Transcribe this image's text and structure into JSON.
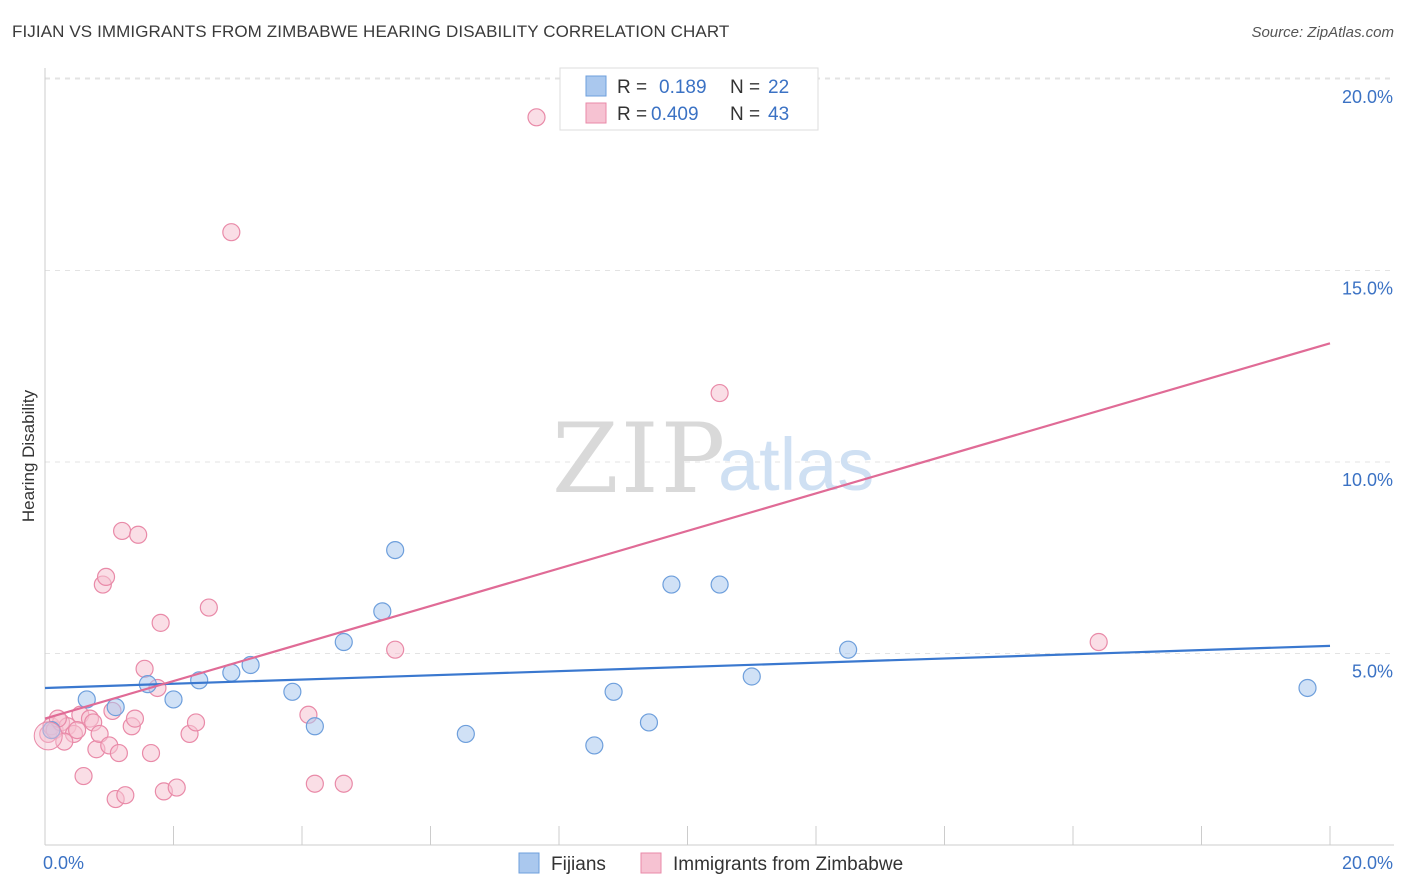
{
  "title": "FIJIAN VS IMMIGRANTS FROM ZIMBABWE HEARING DISABILITY CORRELATION CHART",
  "source": "Source: ZipAtlas.com",
  "watermark": {
    "zip": "ZIP",
    "atlas": "atlas"
  },
  "colors": {
    "fijians_fill": "#aac8ee",
    "fijians_stroke": "#6e9fdc",
    "fijians_line": "#3a78cf",
    "zimbabwe_fill": "#f6c2d2",
    "zimbabwe_stroke": "#e98aa8",
    "zimbabwe_line": "#e06b96",
    "tick_text": "#3b72c4"
  },
  "legend": {
    "rows": [
      {
        "r_label": "R =",
        "r_value": "0.189",
        "n_label": "N =",
        "n_value": "22"
      },
      {
        "r_label": "R =",
        "r_value": "0.409",
        "n_label": "N =",
        "n_value": "43"
      }
    ]
  },
  "chart_data": {
    "type": "scatter",
    "title": "FIJIAN VS IMMIGRANTS FROM ZIMBABWE HEARING DISABILITY CORRELATION CHART",
    "xlabel": "",
    "ylabel": "Hearing Disability",
    "xlim": [
      0,
      20
    ],
    "ylim": [
      0,
      20.5
    ],
    "x_tick_labels": [
      "0.0%",
      "20.0%"
    ],
    "y_tick_labels": [
      "5.0%",
      "10.0%",
      "15.0%",
      "20.0%"
    ],
    "y_ticks": [
      5,
      10,
      15,
      20
    ],
    "series": [
      {
        "name": "Fijians",
        "r": 0.189,
        "n": 22,
        "trend": {
          "x": [
            0,
            20
          ],
          "y": [
            4.1,
            5.2
          ]
        },
        "points": [
          {
            "x": 0.1,
            "y": 3.0
          },
          {
            "x": 0.65,
            "y": 3.8
          },
          {
            "x": 1.1,
            "y": 3.6
          },
          {
            "x": 1.6,
            "y": 4.2
          },
          {
            "x": 2.0,
            "y": 3.8
          },
          {
            "x": 2.4,
            "y": 4.3
          },
          {
            "x": 2.9,
            "y": 4.5
          },
          {
            "x": 3.2,
            "y": 4.7
          },
          {
            "x": 3.85,
            "y": 4.0
          },
          {
            "x": 4.2,
            "y": 3.1
          },
          {
            "x": 4.65,
            "y": 5.3
          },
          {
            "x": 5.25,
            "y": 6.1
          },
          {
            "x": 5.45,
            "y": 7.7
          },
          {
            "x": 6.55,
            "y": 2.9
          },
          {
            "x": 8.55,
            "y": 2.6
          },
          {
            "x": 8.85,
            "y": 4.0
          },
          {
            "x": 9.4,
            "y": 3.2
          },
          {
            "x": 9.75,
            "y": 6.8
          },
          {
            "x": 10.5,
            "y": 6.8
          },
          {
            "x": 11.0,
            "y": 4.4
          },
          {
            "x": 12.5,
            "y": 5.1
          },
          {
            "x": 19.65,
            "y": 4.1
          }
        ]
      },
      {
        "name": "Immigrants from Zimbabwe",
        "r": 0.409,
        "n": 43,
        "trend": {
          "x": [
            0,
            20
          ],
          "y": [
            3.3,
            13.1
          ]
        },
        "points": [
          {
            "x": 0.05,
            "y": 2.9
          },
          {
            "x": 0.1,
            "y": 3.1
          },
          {
            "x": 0.15,
            "y": 3.0
          },
          {
            "x": 0.25,
            "y": 3.2
          },
          {
            "x": 0.35,
            "y": 3.1
          },
          {
            "x": 0.45,
            "y": 2.9
          },
          {
            "x": 0.55,
            "y": 3.4
          },
          {
            "x": 0.6,
            "y": 1.8
          },
          {
            "x": 0.7,
            "y": 3.3
          },
          {
            "x": 0.75,
            "y": 3.2
          },
          {
            "x": 0.8,
            "y": 2.5
          },
          {
            "x": 0.85,
            "y": 2.9
          },
          {
            "x": 0.9,
            "y": 6.8
          },
          {
            "x": 0.95,
            "y": 7.0
          },
          {
            "x": 1.0,
            "y": 2.6
          },
          {
            "x": 1.05,
            "y": 3.5
          },
          {
            "x": 1.1,
            "y": 1.2
          },
          {
            "x": 1.15,
            "y": 2.4
          },
          {
            "x": 1.2,
            "y": 8.2
          },
          {
            "x": 1.25,
            "y": 1.3
          },
          {
            "x": 1.35,
            "y": 3.1
          },
          {
            "x": 1.4,
            "y": 3.3
          },
          {
            "x": 1.45,
            "y": 8.1
          },
          {
            "x": 1.55,
            "y": 4.6
          },
          {
            "x": 1.65,
            "y": 2.4
          },
          {
            "x": 1.8,
            "y": 5.8
          },
          {
            "x": 1.85,
            "y": 1.4
          },
          {
            "x": 2.05,
            "y": 1.5
          },
          {
            "x": 2.25,
            "y": 2.9
          },
          {
            "x": 2.35,
            "y": 3.2
          },
          {
            "x": 2.55,
            "y": 6.2
          },
          {
            "x": 2.9,
            "y": 16.0
          },
          {
            "x": 4.1,
            "y": 3.4
          },
          {
            "x": 4.2,
            "y": 1.6
          },
          {
            "x": 4.65,
            "y": 1.6
          },
          {
            "x": 5.45,
            "y": 5.1
          },
          {
            "x": 7.65,
            "y": 19.0
          },
          {
            "x": 10.5,
            "y": 11.8
          },
          {
            "x": 16.4,
            "y": 5.3
          },
          {
            "x": 0.3,
            "y": 2.7
          },
          {
            "x": 0.5,
            "y": 3.0
          },
          {
            "x": 1.75,
            "y": 4.1
          },
          {
            "x": 0.2,
            "y": 3.3
          }
        ]
      }
    ]
  }
}
